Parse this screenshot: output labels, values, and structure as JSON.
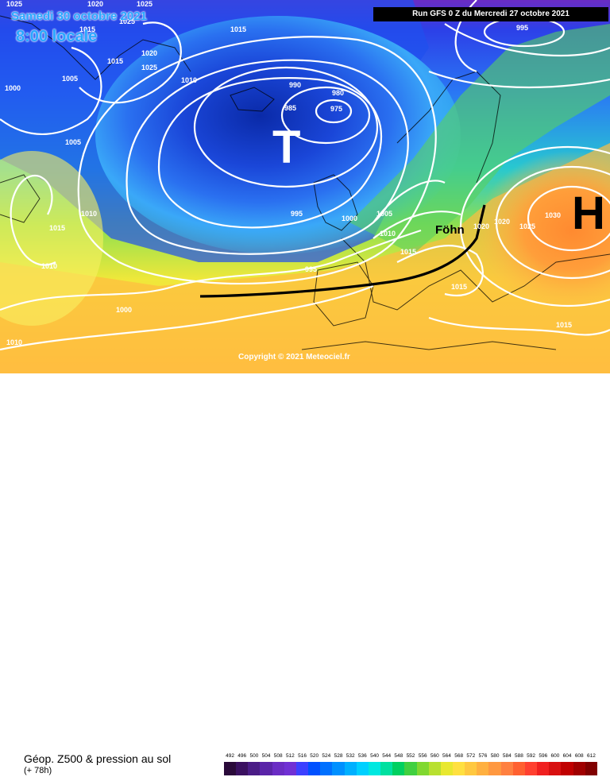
{
  "header": {
    "date": "Samedi 30 octobre 2021",
    "time": "8:00 locale",
    "run": "Run GFS 0 Z du Mercredi 27 octobre 2021"
  },
  "map": {
    "low_symbol": "T",
    "high_symbol": "H",
    "fohn_label": "Föhn",
    "isobar_labels": [
      "1020",
      "1025",
      "1015",
      "1025",
      "1020",
      "1025",
      "1015",
      "1005",
      "1010",
      "1000",
      "1005",
      "990",
      "980",
      "985",
      "975",
      "995",
      "1010",
      "1015",
      "1010",
      "995",
      "1000",
      "1005",
      "1010",
      "1015",
      "995",
      "1000",
      "1010",
      "1020",
      "1025",
      "1030",
      "1015",
      "1020",
      "1015",
      "1025",
      "1015"
    ]
  },
  "copyright": "Copyright © 2021 Meteociel.fr",
  "legend": {
    "title": "Géop. Z500 & pression au sol",
    "subtitle": "(+ 78h)",
    "scale_labels": [
      "492",
      "496",
      "500",
      "504",
      "508",
      "512",
      "516",
      "520",
      "524",
      "528",
      "532",
      "536",
      "540",
      "544",
      "548",
      "552",
      "556",
      "560",
      "564",
      "568",
      "572",
      "576",
      "580",
      "584",
      "588",
      "592",
      "596",
      "600",
      "604",
      "608",
      "612"
    ],
    "scale_colors": [
      "#2a0a3a",
      "#3a1060",
      "#4a1c86",
      "#5a24a8",
      "#6a2cc4",
      "#7030d4",
      "#3c40ff",
      "#0050ff",
      "#0070ff",
      "#0090ff",
      "#00b0ff",
      "#00d0ff",
      "#00e8e0",
      "#00e0a0",
      "#00d060",
      "#40d040",
      "#80d830",
      "#b8e030",
      "#e8e830",
      "#ffe040",
      "#ffc840",
      "#ffb040",
      "#ff9840",
      "#ff8040",
      "#ff6030",
      "#ff4030",
      "#f02020",
      "#d81010",
      "#c00000",
      "#a00000",
      "#800000"
    ]
  }
}
